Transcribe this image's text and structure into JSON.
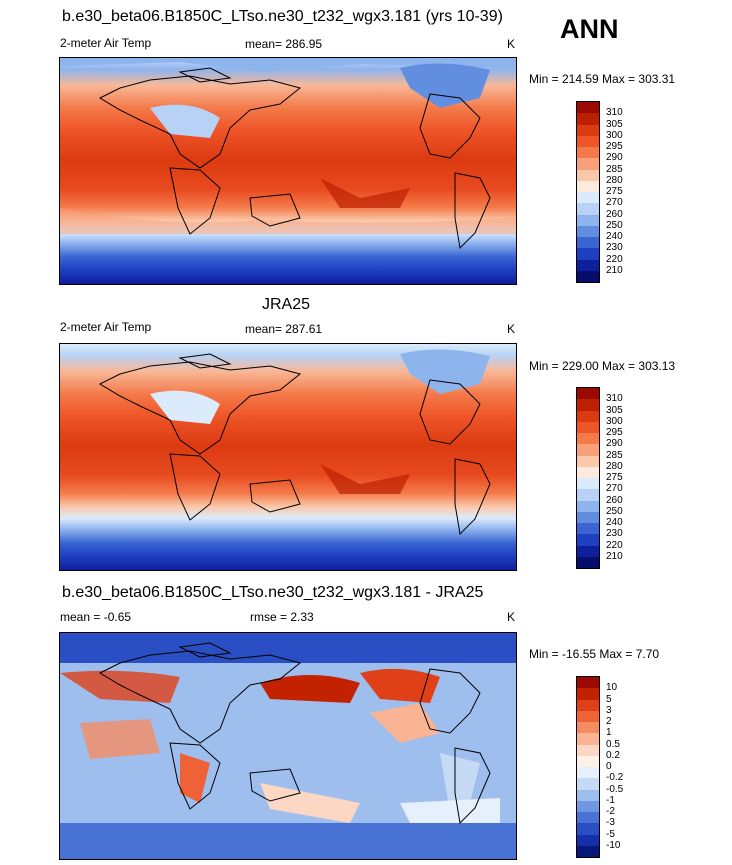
{
  "season": "ANN",
  "panels": [
    {
      "title": "b.e30_beta06.B1850C_LTso.ne30_t232_wgx3.181 (yrs 10-39)",
      "left_label": "2-meter Air Temp",
      "center_label": "mean= 286.95",
      "unit": "K",
      "minmax": "Min = 214.59 Max = 303.31",
      "kind": "abs",
      "levels": [
        "310",
        "305",
        "300",
        "295",
        "290",
        "285",
        "280",
        "275",
        "270",
        "260",
        "250",
        "240",
        "230",
        "220",
        "210"
      ]
    },
    {
      "title": "JRA25",
      "left_label": "2-meter Air Temp",
      "center_label": "mean= 287.61",
      "unit": "K",
      "minmax": "Min = 229.00 Max = 303.13",
      "kind": "abs",
      "levels": [
        "310",
        "305",
        "300",
        "295",
        "290",
        "285",
        "280",
        "275",
        "270",
        "260",
        "250",
        "240",
        "230",
        "220",
        "210"
      ]
    },
    {
      "title": "b.e30_beta06.B1850C_LTso.ne30_t232_wgx3.181 - JRA25",
      "left_label": "mean =  -0.65",
      "center_label": "rmse =   2.33",
      "unit": "K",
      "minmax": "Min = -16.55 Max =   7.70",
      "kind": "diff",
      "levels": [
        "10",
        "5",
        "3",
        "2",
        "1",
        "0.5",
        "0.2",
        "0",
        "-0.2",
        "-0.5",
        "-1",
        "-2",
        "-3",
        "-5",
        "-10"
      ]
    }
  ],
  "colors": {
    "abs": [
      "#9a0a00",
      "#bd2000",
      "#dc3a10",
      "#ee5528",
      "#f47a4a",
      "#f8a07a",
      "#fbc8aa",
      "#fdeade",
      "#dcebfb",
      "#b7d2f6",
      "#8eb4ee",
      "#628ee0",
      "#3a64d2",
      "#1e3fc0",
      "#0e1f9c",
      "#060d6a"
    ],
    "diff": [
      "#9a0a00",
      "#c22200",
      "#e04018",
      "#ef6238",
      "#f58c62",
      "#f9b494",
      "#fcd8c4",
      "#fdf1ea",
      "#e6f0fc",
      "#c6daf6",
      "#9ebeee",
      "#7098e2",
      "#4872d4",
      "#2a4ec4",
      "#1530a8",
      "#081878"
    ]
  }
}
